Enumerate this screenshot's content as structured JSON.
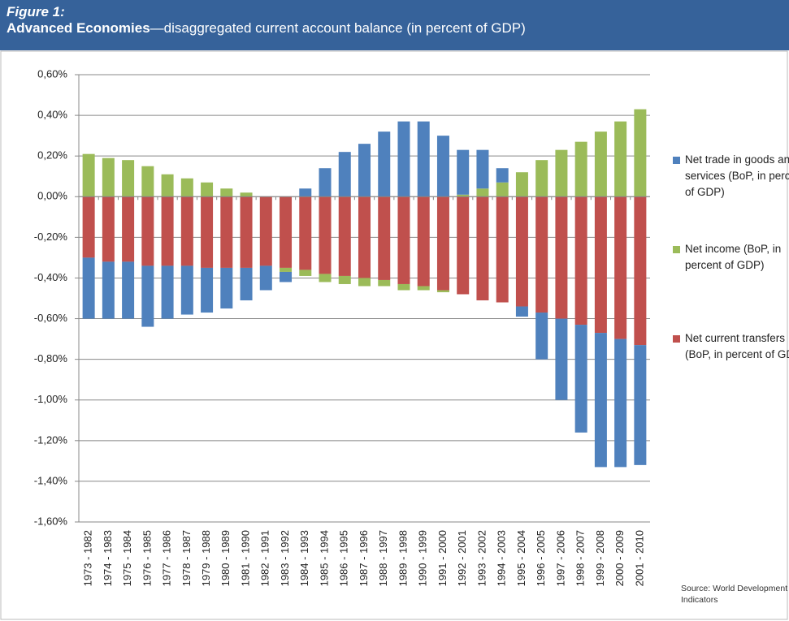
{
  "chart_data": {
    "type": "stacked-bar",
    "figure_label": "Figure 1:",
    "title_bold": "Advanced Economies",
    "title": "—disaggregated current account balance (in percent of GDP)",
    "source": "Source: World Development Indicators",
    "categories": [
      "1973 - 1982",
      "1974 - 1983",
      "1975 - 1984",
      "1976 - 1985",
      "1977 - 1986",
      "1978 - 1987",
      "1979 - 1988",
      "1980 - 1989",
      "1981 - 1990",
      "1982 - 1991",
      "1983 - 1992",
      "1984 - 1993",
      "1985 - 1994",
      "1986 - 1995",
      "1987 - 1996",
      "1988 - 1997",
      "1989 - 1998",
      "1990 - 1999",
      "1991 - 2000",
      "1992 - 2001",
      "1993 - 2002",
      "1994 - 2003",
      "1995 - 2004",
      "1996 - 2005",
      "1997 - 2006",
      "1998 - 2007",
      "1999 - 2008",
      "2000 - 2009",
      "2001 - 2010"
    ],
    "series": [
      {
        "name": "Net trade in goods and services (BoP, in percent of GDP)",
        "color": "#4f81bd",
        "values": [
          -0.3,
          -0.28,
          -0.28,
          -0.3,
          -0.26,
          -0.24,
          -0.22,
          -0.2,
          -0.16,
          -0.12,
          -0.05,
          0.04,
          0.14,
          0.22,
          0.26,
          0.32,
          0.37,
          0.37,
          0.3,
          0.22,
          0.19,
          0.07,
          -0.05,
          -0.23,
          -0.4,
          -0.53,
          -0.66,
          -0.63,
          -0.59
        ]
      },
      {
        "name": "Net income (BoP, in percent of GDP)",
        "color": "#9bbb59",
        "values": [
          0.21,
          0.19,
          0.18,
          0.15,
          0.11,
          0.09,
          0.07,
          0.04,
          0.02,
          0,
          -0.02,
          -0.03,
          -0.04,
          -0.04,
          -0.04,
          -0.03,
          -0.03,
          -0.02,
          -0.01,
          0.01,
          0.04,
          0.07,
          0.12,
          0.18,
          0.23,
          0.27,
          0.32,
          0.37,
          0.43
        ]
      },
      {
        "name": "Net current transfers (BoP, in percent of GDP)",
        "color": "#c0504d",
        "values": [
          -0.3,
          -0.32,
          -0.32,
          -0.34,
          -0.34,
          -0.34,
          -0.35,
          -0.35,
          -0.35,
          -0.34,
          -0.35,
          -0.36,
          -0.38,
          -0.39,
          -0.4,
          -0.41,
          -0.43,
          -0.44,
          -0.46,
          -0.48,
          -0.51,
          -0.52,
          -0.54,
          -0.57,
          -0.6,
          -0.63,
          -0.67,
          -0.7,
          -0.73
        ]
      }
    ],
    "ylim": [
      -1.6,
      0.6
    ],
    "yticks": [
      {
        "value": 0.6,
        "label": "0,60%"
      },
      {
        "value": 0.4,
        "label": "0,40%"
      },
      {
        "value": 0.2,
        "label": "0,20%"
      },
      {
        "value": 0,
        "label": "0,00%"
      },
      {
        "value": -0.2,
        "label": "-0,20%"
      },
      {
        "value": -0.4,
        "label": "-0,40%"
      },
      {
        "value": -0.6,
        "label": "-0,60%"
      },
      {
        "value": -0.8,
        "label": "-0,80%"
      },
      {
        "value": -1.0,
        "label": "-1,00%"
      },
      {
        "value": -1.2,
        "label": "-1,20%"
      },
      {
        "value": -1.4,
        "label": "-1,40%"
      },
      {
        "value": -1.6,
        "label": "-1,60%"
      }
    ],
    "grid": true,
    "legend": "right"
  }
}
